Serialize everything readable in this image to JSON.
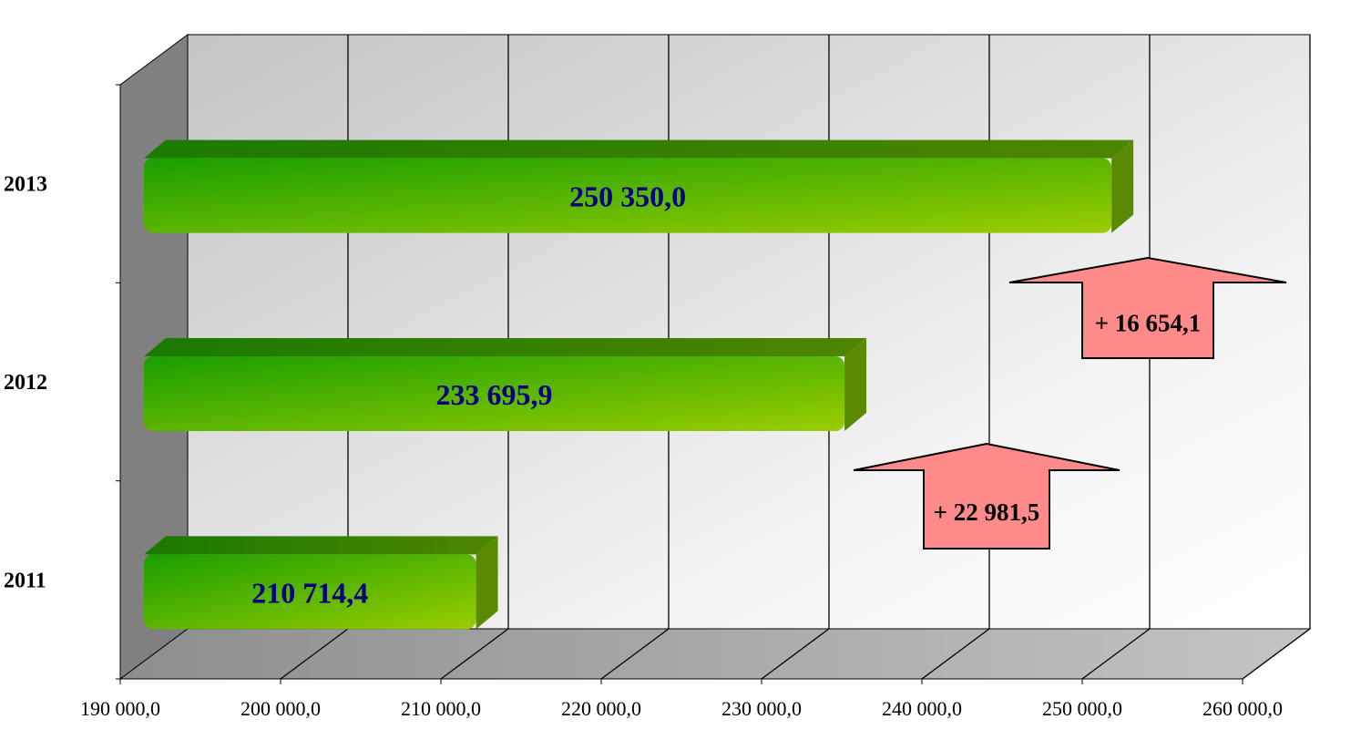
{
  "chart_data": {
    "type": "bar",
    "orientation": "horizontal",
    "style": "3d",
    "categories": [
      "2011",
      "2012",
      "2013"
    ],
    "values": [
      210714.4,
      233695.9,
      250350.0
    ],
    "value_labels": [
      "210 714,4",
      "233 695,9",
      "250 350,0"
    ],
    "xlim": [
      190000,
      260000
    ],
    "x_ticks": [
      190000,
      200000,
      210000,
      220000,
      230000,
      240000,
      250000,
      260000
    ],
    "x_tick_labels": [
      "190 000,0",
      "200 000,0",
      "210 000,0",
      "220 000,0",
      "230 000,0",
      "240 000,0",
      "250 000,0",
      "260 000,0"
    ],
    "grid": true,
    "annotations": [
      {
        "text": "+ 22 981,5",
        "shape": "up-arrow",
        "between": [
          "2011",
          "2012"
        ]
      },
      {
        "text": "+ 16 654,1",
        "shape": "up-arrow",
        "between": [
          "2012",
          "2013"
        ]
      }
    ],
    "colors": {
      "bar_dark": "#1a9e00",
      "bar_light": "#9acd00",
      "label": "#000080",
      "arrow": "#ff8a8a"
    }
  }
}
